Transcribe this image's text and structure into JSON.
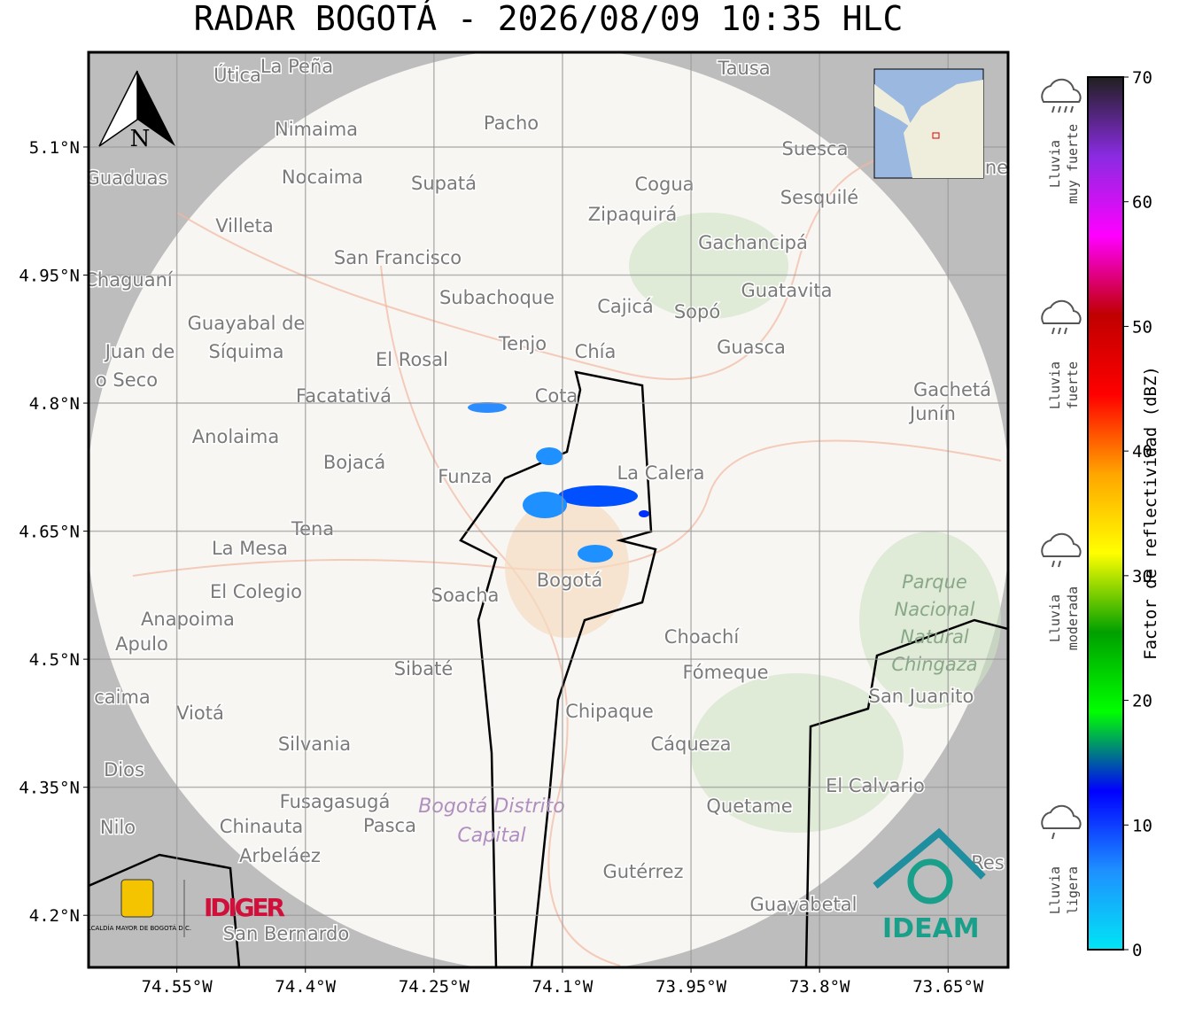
{
  "title": "RADAR BOGOTÁ - 2026/08/09 10:35 HLC",
  "map": {
    "xlim": [
      -74.653,
      -73.58
    ],
    "ylim": [
      4.139,
      5.211
    ],
    "xticks": [
      {
        "value": -74.55,
        "label": "74.55°W"
      },
      {
        "value": -74.4,
        "label": "74.4°W"
      },
      {
        "value": -74.25,
        "label": "74.25°W"
      },
      {
        "value": -74.1,
        "label": "74.1°W"
      },
      {
        "value": -73.95,
        "label": "73.95°W"
      },
      {
        "value": -73.8,
        "label": "73.8°W"
      },
      {
        "value": -73.65,
        "label": "73.65°W"
      }
    ],
    "yticks": [
      {
        "value": 5.1,
        "label": "5.1°N"
      },
      {
        "value": 4.95,
        "label": "4.95°N"
      },
      {
        "value": 4.8,
        "label": "4.8°N"
      },
      {
        "value": 4.65,
        "label": "4.65°N"
      },
      {
        "value": 4.5,
        "label": "4.5°N"
      },
      {
        "value": 4.35,
        "label": "4.35°N"
      },
      {
        "value": 4.2,
        "label": "4.2°N"
      }
    ],
    "north": "N",
    "places": [
      "Útica",
      "La Peña",
      "Tausa",
      "Pacho",
      "Nimaima",
      "Suesca",
      "Guaduas",
      "Nocaima",
      "Supatá",
      "Cogua",
      "Sesquilé",
      "Zipaquirá",
      "Villeta",
      "Gachancipá",
      "San Francisco",
      "Chaguaní",
      "Guatavita",
      "Subachoque",
      "Cajicá",
      "Sopó",
      "Guayabal de",
      "Síquima",
      "Tenjo",
      "Chía",
      "Guasca",
      "Juan de",
      "o Seco",
      "El Rosal",
      "Facatativá",
      "Cota",
      "Gachetá",
      "Junín",
      "Anolaima",
      "Bojacá",
      "Funza",
      "La Calera",
      "Tena",
      "La Mesa",
      "El Colegio",
      "Soacha",
      "Bogotá",
      "Anapoima",
      "Apulo",
      "Choachí",
      "Sibaté",
      "Fómeque",
      "San Juanito",
      "caima",
      "Viotá",
      "Chipaque",
      "Silvania",
      "Cáqueza",
      "Dios",
      "El Calvario",
      "Fusagasugá",
      "Quetame",
      "Nilo",
      "Chinauta",
      "Pasca",
      "Arbeláez",
      "Gutérrez",
      "Res",
      "Guayabetal",
      "San Bernardo",
      "ne"
    ],
    "parks": [
      "Parque",
      "Nacional",
      "Natural",
      "Chingaza"
    ],
    "districts": [
      "Bogotá Distrito",
      "Capital"
    ],
    "logos": {
      "alcaldia": "ALCALDÍA MAYOR DE BOGOTÁ D.C.",
      "idiger": "IDIGER",
      "ideam": "IDEAM"
    }
  },
  "colorbar": {
    "label": "Factor de reflectividad (dBZ)",
    "lim": [
      0,
      70
    ],
    "ticks": [
      0,
      10,
      20,
      30,
      40,
      50,
      60,
      70
    ],
    "colors": [
      "#00e5f5",
      "#1e90ff",
      "#0000ff",
      "#00ff00",
      "#00a000",
      "#ffff00",
      "#ffa500",
      "#ff0000",
      "#c00000",
      "#ff00ff",
      "#8a2be2",
      "#202020"
    ]
  },
  "rain_legend": [
    [
      "Lluvia",
      "muy fuerte"
    ],
    [
      "Lluvia",
      "fuerte"
    ],
    [
      "Lluvia",
      "moderada"
    ],
    [
      "Lluvia",
      "ligera"
    ]
  ]
}
